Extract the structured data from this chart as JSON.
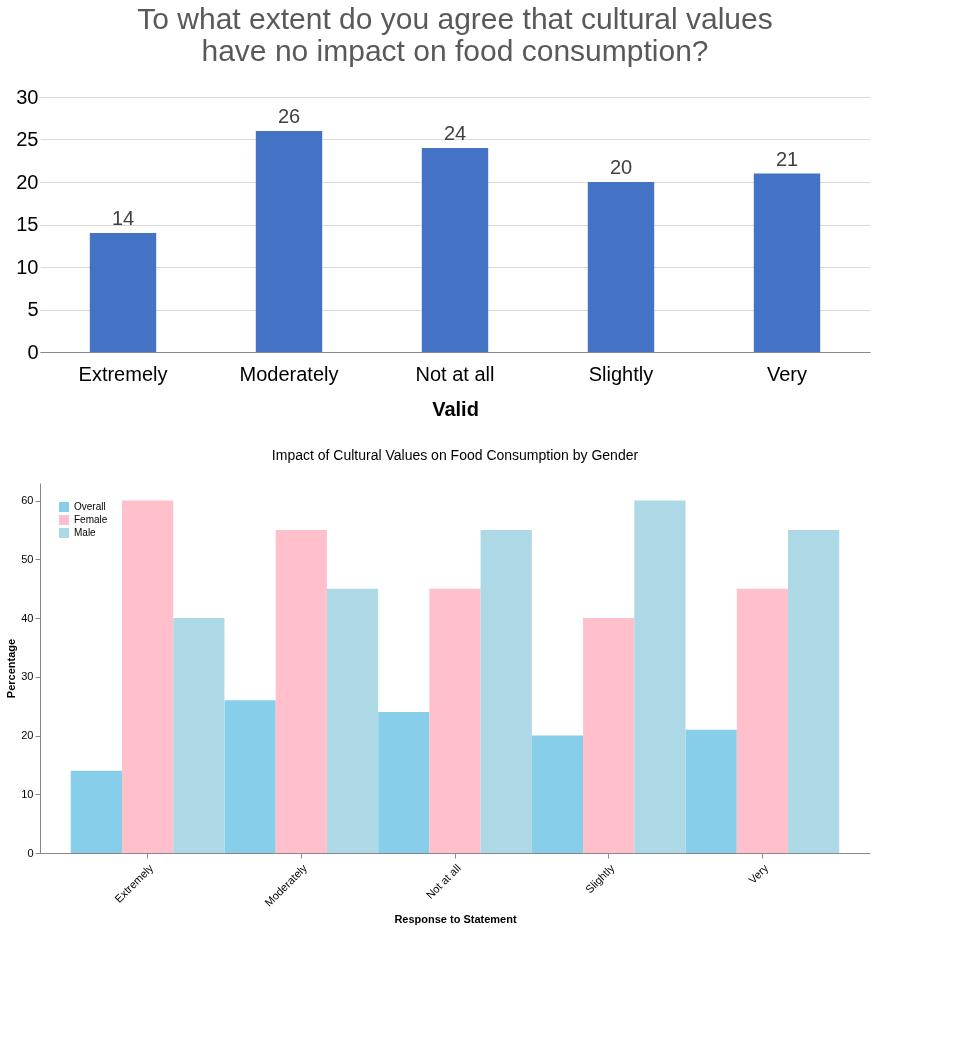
{
  "chart_data": [
    {
      "type": "bar",
      "title": "To what extent do you agree that cultural values have no impact on food consumption?",
      "xlabel": "Valid",
      "categories": [
        "Extremely",
        "Moderately",
        "Not at all",
        "Slightly",
        "Very"
      ],
      "values": [
        14,
        26,
        24,
        20,
        21
      ],
      "color": "#4472c4",
      "ylim": [
        0,
        30
      ],
      "yticks": [
        0,
        5,
        10,
        15,
        20,
        25,
        30
      ],
      "grid": "y",
      "data_labels": true
    },
    {
      "type": "bar",
      "title": "Impact of Cultural Values on Food Consumption by Gender",
      "xlabel": "Response to Statement",
      "ylabel": "Percentage",
      "categories": [
        "Extremely",
        "Moderately",
        "Not at all",
        "Slightly",
        "Very"
      ],
      "series": [
        {
          "name": "Overall",
          "color": "#87ceeb",
          "values": [
            14,
            26,
            24,
            20,
            21
          ]
        },
        {
          "name": "Female",
          "color": "#ffc0cb",
          "values": [
            60,
            55,
            45,
            40,
            45
          ]
        },
        {
          "name": "Male",
          "color": "#add8e6",
          "values": [
            40,
            45,
            55,
            60,
            55
          ]
        }
      ],
      "ylim": [
        0,
        63
      ],
      "yticks": [
        0,
        10,
        20,
        30,
        40,
        50,
        60
      ],
      "grid": false,
      "legend": "top left"
    }
  ]
}
